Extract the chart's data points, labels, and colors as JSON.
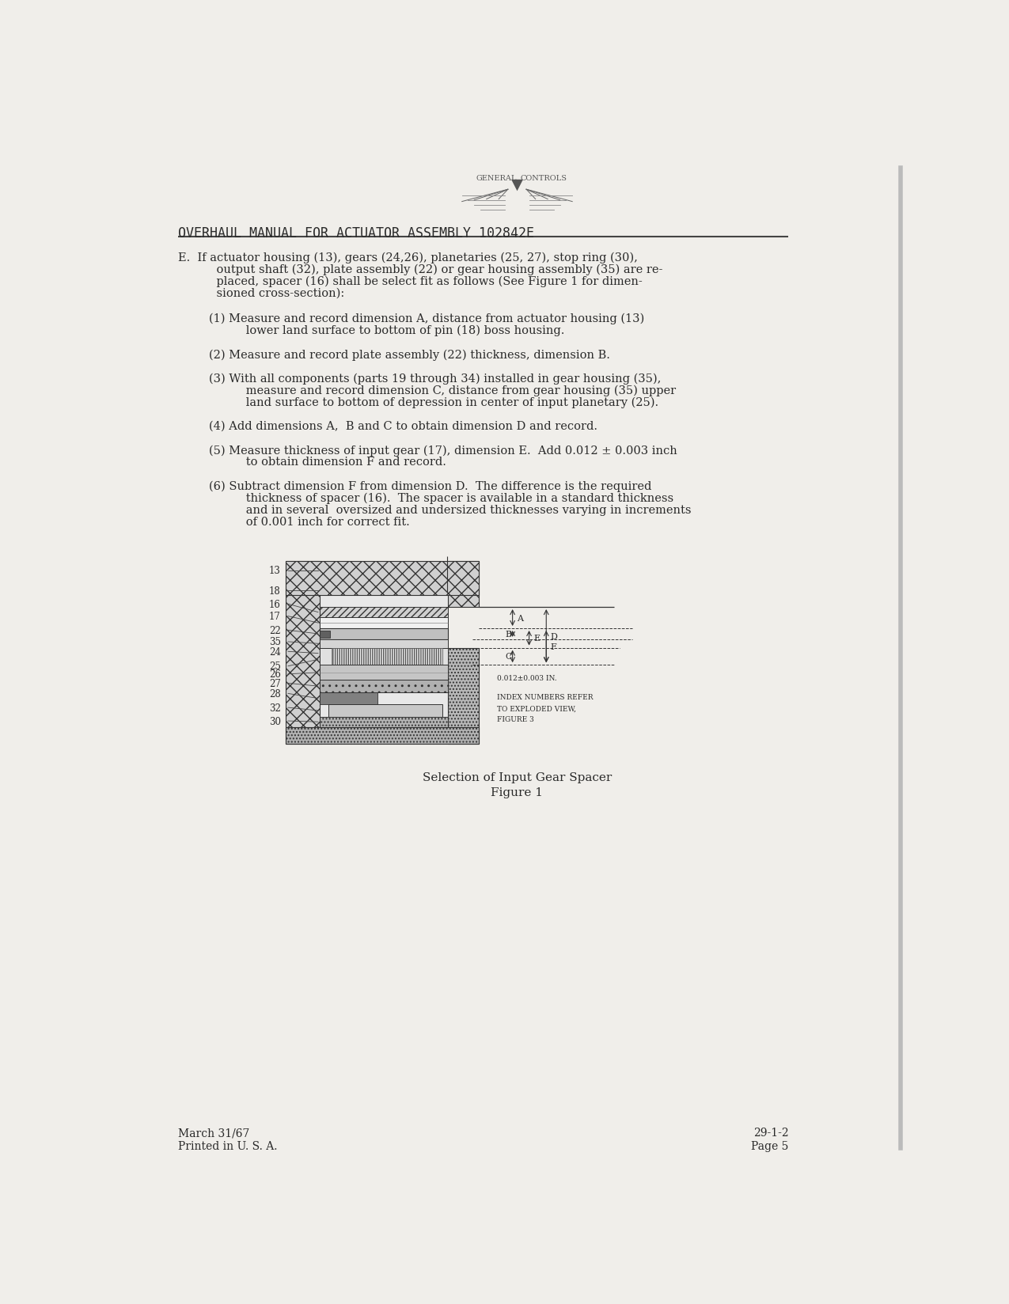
{
  "page_width": 12.75,
  "page_height": 16.49,
  "bg_color": "#f0eeea",
  "text_color": "#2a2a2a",
  "title": "OVERHAUL MANUAL FOR ACTUATOR ASSEMBLY 102842E",
  "figure_caption_line1": "Selection of Input Gear Spacer",
  "figure_caption_line2": "Figure 1",
  "footer_left_line1": "March 31/67",
  "footer_left_line2": "Printed in U. S. A.",
  "footer_right_line1": "29-1-2",
  "footer_right_line2": "Page 5",
  "body_E_lines": [
    "E.  If actuator housing (13), gears (24,26), planetaries (25, 27), stop ring (30),",
    "    output shaft (32), plate assembly (22) or gear housing assembly (35) are re-",
    "    placed, spacer (16) shall be select fit as follows (See Figure 1 for dimen-",
    "    sioned cross-section):"
  ],
  "item1_lines": [
    "(1) Measure and record dimension A, distance from actuator housing (13)",
    "      lower land surface to bottom of pin (18) boss housing."
  ],
  "item2_lines": [
    "(2) Measure and record plate assembly (22) thickness, dimension B."
  ],
  "item3_lines": [
    "(3) With all components (parts 19 through 34) installed in gear housing (35),",
    "      measure and record dimension C, distance from gear housing (35) upper",
    "      land surface to bottom of depression in center of input planetary (25)."
  ],
  "item4_lines": [
    "(4) Add dimensions A,  B and C to obtain dimension D and record."
  ],
  "item5_lines": [
    "(5) Measure thickness of input gear (17), dimension E.  Add 0.012 ± 0.003 inch",
    "      to obtain dimension F and record."
  ],
  "item6_lines": [
    "(6) Subtract dimension F from dimension D.  The difference is the required",
    "      thickness of spacer (16).  The spacer is available in a standard thickness",
    "      and in several  oversized and undersized thicknesses varying in increments",
    "      of 0.001 inch for correct fit."
  ]
}
